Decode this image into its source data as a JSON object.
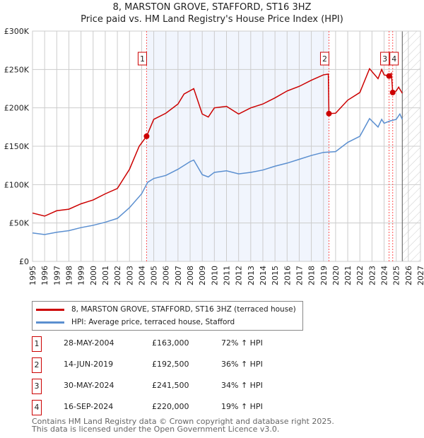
{
  "chart_data": {
    "type": "line",
    "title": "8, MARSTON GROVE, STAFFORD, ST16 3HZ",
    "subtitle": "Price paid vs. HM Land Registry's House Price Index (HPI)",
    "xlim": [
      1995,
      2027
    ],
    "ylim": [
      0,
      300000
    ],
    "y_ticks": [
      "£0",
      "£50K",
      "£100K",
      "£150K",
      "£200K",
      "£250K",
      "£300K"
    ],
    "y_tick_values": [
      0,
      50000,
      100000,
      150000,
      200000,
      250000,
      300000
    ],
    "x_ticks": [
      "1995",
      "1996",
      "1997",
      "1998",
      "1999",
      "2000",
      "2001",
      "2002",
      "2003",
      "2004",
      "2005",
      "2006",
      "2007",
      "2008",
      "2009",
      "2010",
      "2011",
      "2012",
      "2013",
      "2014",
      "2015",
      "2016",
      "2017",
      "2018",
      "2019",
      "2020",
      "2021",
      "2022",
      "2023",
      "2024",
      "2025",
      "2026",
      "2027"
    ],
    "grid": true,
    "shaded_range": [
      2004.41,
      2019.45
    ],
    "forecast_from": 2025.5,
    "series": [
      {
        "name": "8, MARSTON GROVE, STAFFORD, ST16 3HZ (terraced house)",
        "color": "#cc0000",
        "x": [
          1995,
          1996,
          1997,
          1998,
          1999,
          2000,
          2001,
          2002,
          2003,
          2003.8,
          2004.41,
          2005,
          2006,
          2007,
          2007.5,
          2008.3,
          2009,
          2009.5,
          2010,
          2011,
          2012,
          2013,
          2014,
          2015,
          2016,
          2017,
          2018,
          2019,
          2019.4,
          2019.45,
          2020,
          2021,
          2022,
          2022.8,
          2023.5,
          2023.8,
          2024,
          2024.41,
          2024.6,
          2024.71,
          2025,
          2025.2,
          2025.5
        ],
        "y": [
          63000,
          59000,
          66000,
          68000,
          75000,
          80000,
          88000,
          95000,
          120000,
          150000,
          163000,
          185000,
          193000,
          205000,
          218000,
          225000,
          192000,
          188000,
          200000,
          202000,
          192000,
          200000,
          205000,
          213000,
          222000,
          228000,
          236000,
          243000,
          244000,
          192500,
          193000,
          210000,
          220000,
          251000,
          238000,
          250000,
          243000,
          241500,
          245000,
          220000,
          222000,
          227000,
          219000
        ]
      },
      {
        "name": "HPI: Average price, terraced house, Stafford",
        "color": "#5b8fd0",
        "x": [
          1995,
          1996,
          1997,
          1998,
          1999,
          2000,
          2001,
          2002,
          2003,
          2004,
          2004.5,
          2005,
          2006,
          2007,
          2008,
          2008.3,
          2009,
          2009.5,
          2010,
          2011,
          2012,
          2013,
          2014,
          2015,
          2016,
          2017,
          2018,
          2019,
          2020,
          2021,
          2022,
          2022.8,
          2023.5,
          2023.8,
          2024,
          2024.5,
          2025,
          2025.3,
          2025.5
        ],
        "y": [
          37000,
          35000,
          38000,
          40000,
          44000,
          47000,
          51000,
          56000,
          70000,
          88000,
          103000,
          108000,
          112000,
          120000,
          130000,
          132000,
          113000,
          110000,
          116000,
          118000,
          114000,
          116000,
          119000,
          124000,
          128000,
          133000,
          138000,
          142000,
          143000,
          155000,
          163000,
          186000,
          175000,
          185000,
          180000,
          183000,
          185000,
          192000,
          185000
        ]
      }
    ],
    "sales": [
      {
        "label": "1",
        "date": "28-MAY-2004",
        "x": 2004.41,
        "price": "£163,000",
        "value": 163000,
        "hpi": "72% ↑ HPI"
      },
      {
        "label": "2",
        "date": "14-JUN-2019",
        "x": 2019.45,
        "price": "£192,500",
        "value": 192500,
        "hpi": "36% ↑ HPI"
      },
      {
        "label": "3",
        "date": "30-MAY-2024",
        "x": 2024.41,
        "price": "£241,500",
        "value": 241500,
        "hpi": "34% ↑ HPI"
      },
      {
        "label": "4",
        "date": "16-SEP-2024",
        "x": 2024.71,
        "price": "£220,000",
        "value": 220000,
        "hpi": "19% ↑ HPI"
      }
    ]
  },
  "footer": {
    "line1": "Contains HM Land Registry data © Crown copyright and database right 2025.",
    "line2": "This data is licensed under the Open Government Licence v3.0."
  }
}
